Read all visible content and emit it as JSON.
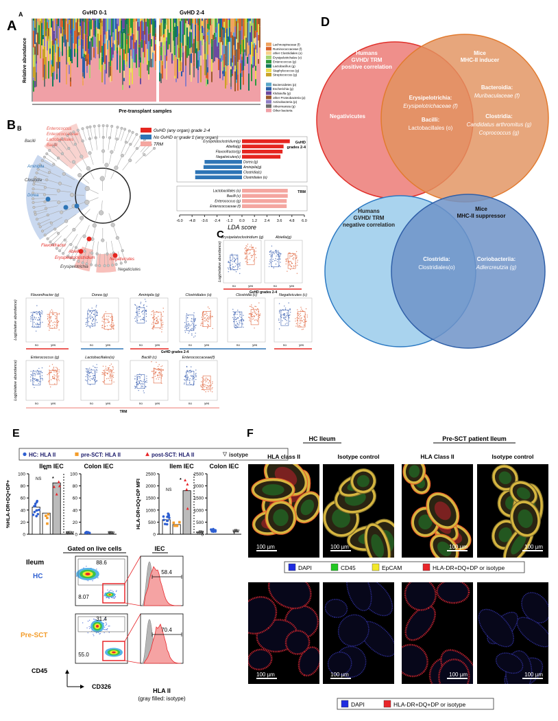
{
  "panel_a": {
    "label": "A",
    "sublabel": "A",
    "group_titles": [
      "GvHD 0-1",
      "GvHD 2-4"
    ],
    "ylabel": "Relative abundance",
    "xlabel": "Pre-transplant samples",
    "legend": [
      {
        "name": "Lachnospiraceae (f)",
        "color": "#f0a35e"
      },
      {
        "name": "Ruminococcaceae (f)",
        "color": "#d9622b"
      },
      {
        "name": "other Clostridiales (o)",
        "color": "#f7d08a"
      },
      {
        "name": "Erysipelotrichales (o)",
        "color": "#a7d36f"
      },
      {
        "name": "Enterococcus (g)",
        "color": "#2e9a3c"
      },
      {
        "name": "Lactobacillus (g)",
        "color": "#157a57"
      },
      {
        "name": "Staphylococcus (g)",
        "color": "#e9dc4a"
      },
      {
        "name": "Streptococcus (g)",
        "color": "#c9a227"
      },
      {
        "name": "Bacteroidetes (p)",
        "color": "#5aa6c9"
      },
      {
        "name": "Escherichia (g)",
        "color": "#2a5fa8"
      },
      {
        "name": "Klebsiella (g)",
        "color": "#6b4aa0"
      },
      {
        "name": "other Proteobacteria (p)",
        "color": "#9c5a2c"
      },
      {
        "name": "Actinobacteria (p)",
        "color": "#8e7cc3"
      },
      {
        "name": "Akkermansia (g)",
        "color": "#6e6e6e"
      },
      {
        "name": "Other bacteria",
        "color": "#f0a0a6"
      }
    ]
  },
  "panel_b": {
    "label": "B",
    "sublabel": "B",
    "clade_labels": [
      {
        "text": "Enterococcus",
        "color": "#e8584e"
      },
      {
        "text": "Enterococcaceae",
        "color": "#e8584e"
      },
      {
        "text": "Lactobacillales",
        "color": "#e8584e"
      },
      {
        "text": "Bacilli",
        "color": "#e8584e"
      },
      {
        "text": "Bacilli",
        "color": "#333333"
      },
      {
        "text": "Aminipila",
        "color": "#2e75b6"
      },
      {
        "text": "Clostridia",
        "color": "#333333"
      },
      {
        "text": "Dorea",
        "color": "#2e75b6"
      },
      {
        "text": "Flavonifractor",
        "color": "#e52620"
      },
      {
        "text": "Abiella",
        "color": "#e52620"
      },
      {
        "text": "Erysipelatoclostridium",
        "color": "#e52620"
      },
      {
        "text": "Negativicutes",
        "color": "#e52620"
      },
      {
        "text": "Erysipelotrichia",
        "color": "#333333"
      },
      {
        "text": "Negaticiutes",
        "color": "#333333"
      }
    ],
    "legend": [
      {
        "name": "GvHD (any organ) grade 2-4",
        "color": "#e52620"
      },
      {
        "name": "No GvHD or grade 1 (any organ)",
        "color": "#2e75b6"
      },
      {
        "name": "TRM",
        "color": "#f4a6a0"
      }
    ]
  },
  "chart_data": {
    "type": "bar",
    "orientation": "horizontal",
    "xlabel": "LDA score",
    "xlim": [
      -6,
      6
    ],
    "xticks": [
      {
        "value": -6,
        "label": "-6.0"
      },
      -4.8,
      -3.6,
      -2.4,
      -1.2,
      {
        "value": 0,
        "label": "0.0"
      },
      1.2,
      2.4,
      3.6,
      4.8,
      {
        "value": 6,
        "label": "6.0"
      }
    ],
    "groups": [
      {
        "label": [
          "GvHD",
          "grades 2-4"
        ],
        "categories": [
          "Erysipelatoclostridium(g)",
          "Abiella(g)",
          "Flavonifractor(g)",
          "Negativicutes(c)",
          "Dorea (g)",
          "Aminipila(g)",
          "Clostridia(c)",
          "Clostridiales (o)"
        ],
        "values": [
          4.6,
          4.0,
          3.9,
          3.7,
          -3.6,
          -3.7,
          -4.5,
          -4.5
        ],
        "colors": [
          "#e52620",
          "#e52620",
          "#e52620",
          "#e52620",
          "#2e75b6",
          "#2e75b6",
          "#2e75b6",
          "#2e75b6"
        ]
      },
      {
        "label": [
          "TRM"
        ],
        "categories": [
          "Lactobacillales (o)",
          "Bacilli (c)",
          "Enterococcus (g)",
          "Enterococcaceae (f)"
        ],
        "values": [
          4.4,
          4.4,
          4.3,
          4.3
        ],
        "colors": [
          "#f4a6a0",
          "#f4a6a0",
          "#f4a6a0",
          "#f4a6a0"
        ]
      }
    ]
  },
  "panel_c": {
    "label": "C",
    "ylabel": "Log(relative abundance)",
    "x_labels": [
      "no",
      "yes"
    ],
    "group_labels": [
      "GvHD grades 2-4",
      "TRM"
    ],
    "plots": [
      "Erysipelatoclostridium (g)",
      "Abiella(g)",
      "Flavonifractor (g)",
      "Dorea (g)",
      "Aminipila (g)",
      "Clostridiales (o)",
      "Clostridia (c)",
      "Negativicutes (c)",
      "Enterococcus (g)",
      "Lactobacillales(o)",
      "Bacilli (c)",
      "Enterococcaceae(f)"
    ]
  },
  "panel_d": {
    "label": "D",
    "top": {
      "left_title": [
        "Humans",
        "GVHD/ TRM",
        "positive correlation"
      ],
      "right_title": [
        "Mice",
        "MHC-II inducer"
      ],
      "left_only": "Negativicutes",
      "overlap": [
        [
          "Erysipelotrichia:",
          "Erysipelotrichaceae (f)"
        ],
        [
          "Bacilli:",
          "Lactobacillales (o)"
        ]
      ],
      "right_only": [
        [
          "Bacteroidia:",
          "Muribaculaceae (f)"
        ],
        [
          "Clostridia:",
          "Candidatus arthromitus (g)",
          "Coprococcus (g)"
        ]
      ]
    },
    "bottom": {
      "left_title": [
        "Humans",
        "GVHD/ TRM",
        "negative correlation"
      ],
      "right_title": [
        "Mice",
        "MHC-II suppressor"
      ],
      "overlap": [
        "Clostridia:",
        "Clostridiales(o)"
      ],
      "right_only": [
        "Coriobacteriia:",
        "Adlercreutzia (g)"
      ]
    }
  },
  "panel_e": {
    "label": "E",
    "legend": [
      {
        "name": "HC: HLA II",
        "color": "#2e5fd1"
      },
      {
        "name": "pre-SCT: HLA II",
        "color": "#f39c2a"
      },
      {
        "name": "post-SCT: HLA II",
        "color": "#e8262a"
      },
      {
        "name": "isotype",
        "color": "#444444"
      }
    ],
    "annotations": [
      "NS",
      "*",
      "**"
    ],
    "plots": [
      {
        "title": "Ilem IEC",
        "ylabel": "%HLA-DR+DQ+DP+",
        "ylim": [
          0,
          100
        ],
        "yticks": [
          0,
          20,
          40,
          60,
          80,
          100
        ],
        "values": [
          45,
          35,
          85,
          2
        ]
      },
      {
        "title": "Colon IEC",
        "ylim": [
          0,
          100
        ],
        "yticks": [
          0,
          20,
          40,
          60,
          80,
          100
        ],
        "values": [
          3,
          null,
          null,
          2
        ]
      },
      {
        "title": "Ilem IEC",
        "ylabel": "HLA-DR+DQ+DP MFI",
        "ylim": [
          0,
          2500
        ],
        "yticks": [
          0,
          500,
          1000,
          1500,
          2000,
          2500
        ],
        "values": [
          600,
          400,
          1800,
          80
        ]
      },
      {
        "title": "Colon IEC",
        "ylim": [
          0,
          2500
        ],
        "yticks": [
          0,
          500,
          1000,
          1500,
          2000,
          2500
        ],
        "values": [
          150,
          null,
          null,
          120
        ]
      }
    ],
    "flow": {
      "gate_title": "Gated on live cells",
      "hist_title": "IEC",
      "tissue": "Ileum",
      "rows": [
        {
          "name": "HC",
          "upper": "88.6",
          "lower": "8.07",
          "hist": "58.4"
        },
        {
          "name": "Pre-SCT",
          "upper": "31.4",
          "lower": "55.0",
          "hist": "70.4"
        }
      ],
      "y_axis": "CD45",
      "x_axis": "CD326",
      "hist_axis": "HLA II",
      "hist_note": "(gray filled: isotype)"
    }
  },
  "panel_f": {
    "label": "F",
    "groups": [
      "HC Ileum",
      "Pre-SCT patient Ileum"
    ],
    "columns": [
      "HLA class II",
      "Isotype control",
      "HLA Class II",
      "Isotype control"
    ],
    "scale_bar": "100 µm",
    "legend_top": [
      {
        "name": "DAPI",
        "color": "#1f2de0"
      },
      {
        "name": "CD45",
        "color": "#22c722"
      },
      {
        "name": "EpCAM",
        "color": "#f2e82a"
      },
      {
        "name": "HLA-DR+DQ+DP or isotype",
        "color": "#e8262a"
      }
    ],
    "legend_bottom": [
      {
        "name": "DAPI",
        "color": "#1f2de0"
      },
      {
        "name": "HLA-DR+DQ+DP or isotype",
        "color": "#e8262a"
      }
    ]
  }
}
